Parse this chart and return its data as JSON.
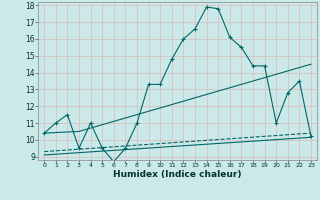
{
  "xlabel": "Humidex (Indice chaleur)",
  "bg_color": "#cce9e9",
  "grid_color": "#ddbbbb",
  "line_color": "#006666",
  "xlim": [
    -0.5,
    23.5
  ],
  "ylim": [
    8.8,
    18.2
  ],
  "xticks": [
    0,
    1,
    2,
    3,
    4,
    5,
    6,
    7,
    8,
    9,
    10,
    11,
    12,
    13,
    14,
    15,
    16,
    17,
    18,
    19,
    20,
    21,
    22,
    23
  ],
  "yticks": [
    9,
    10,
    11,
    12,
    13,
    14,
    15,
    16,
    17,
    18
  ],
  "line1_x": [
    0,
    1,
    2,
    3,
    4,
    5,
    6,
    7,
    8,
    9,
    10,
    11,
    12,
    13,
    14,
    15,
    16,
    17,
    18,
    19,
    20,
    21,
    22,
    23
  ],
  "line1_y": [
    10.4,
    11.0,
    11.5,
    9.5,
    11.0,
    9.5,
    8.7,
    9.5,
    11.0,
    13.3,
    13.3,
    14.8,
    16.0,
    16.6,
    17.9,
    17.8,
    16.1,
    15.5,
    14.4,
    14.4,
    11.0,
    12.8,
    13.5,
    10.2
  ],
  "line2_x": [
    0,
    3,
    23
  ],
  "line2_y": [
    10.4,
    10.5,
    14.5
  ],
  "line3_x": [
    0,
    23
  ],
  "line3_y": [
    9.1,
    10.15
  ],
  "line4_x": [
    0,
    23
  ],
  "line4_y": [
    9.3,
    10.4
  ]
}
